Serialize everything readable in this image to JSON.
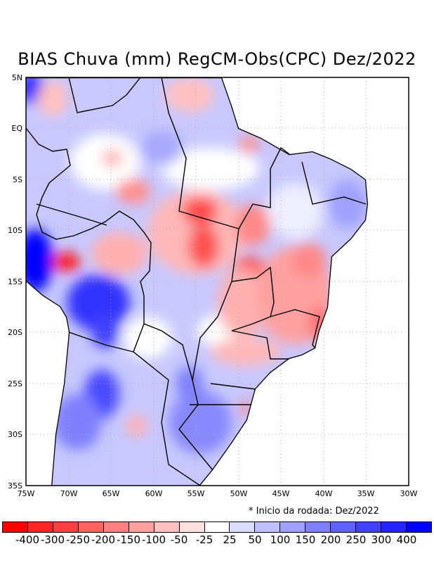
{
  "title": "BIAS Chuva (mm) RegCM-Obs(CPC) Dez/2022",
  "footnote": "* Inicio da rodada: Dez/2022",
  "axes": {
    "lon_labels": [
      "75W",
      "70W",
      "65W",
      "60W",
      "55W",
      "50W",
      "45W",
      "40W",
      "35W",
      "30W"
    ],
    "lat_labels": [
      "5N",
      "EQ",
      "5S",
      "10S",
      "15S",
      "20S",
      "25S",
      "30S",
      "35S"
    ],
    "lon_range": [
      -75,
      -30
    ],
    "lat_range": [
      -35,
      5
    ]
  },
  "colorbar": {
    "levels": [
      "-400",
      "-300",
      "-250",
      "-200",
      "-150",
      "-100",
      "-50",
      "-25",
      "25",
      "50",
      "100",
      "150",
      "200",
      "250",
      "300",
      "400"
    ],
    "colors": [
      "#ff0000",
      "#ff2424",
      "#ff4040",
      "#ff6060",
      "#ff8080",
      "#ffa0a0",
      "#ffc0c0",
      "#ffe0e0",
      "#ffffff",
      "#dcdcff",
      "#c0c0ff",
      "#a0a0ff",
      "#8080ff",
      "#6060ff",
      "#4040ff",
      "#2424ff",
      "#0000ff"
    ]
  }
}
